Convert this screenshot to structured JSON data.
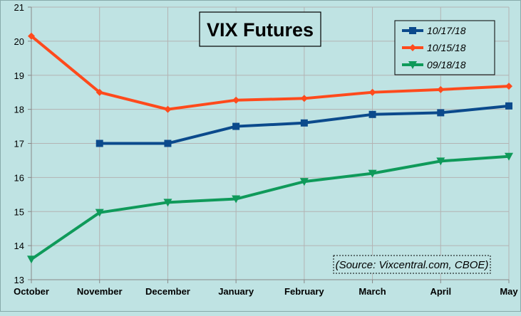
{
  "chart_data": {
    "type": "line",
    "title": "VIX Futures",
    "source_note": "(Source: Vixcentral.com, CBOE)",
    "categories": [
      "October",
      "November",
      "December",
      "January",
      "February",
      "March",
      "April",
      "May"
    ],
    "ylim": [
      13,
      21
    ],
    "yticks": [
      "13",
      "14",
      "15",
      "16",
      "17",
      "18",
      "19",
      "20",
      "21"
    ],
    "grid": true,
    "legend_position": "top-right",
    "series": [
      {
        "name": "10/17/18",
        "color": "#0b4a8c",
        "marker": "square",
        "values": [
          null,
          17.0,
          17.0,
          17.5,
          17.6,
          17.85,
          17.9,
          18.1
        ]
      },
      {
        "name": "10/15/18",
        "color": "#ff4a1c",
        "marker": "diamond",
        "values": [
          20.15,
          18.5,
          18.0,
          18.27,
          18.32,
          18.5,
          18.58,
          18.68
        ]
      },
      {
        "name": "09/18/18",
        "color": "#0f9a5a",
        "marker": "triangle-down",
        "values": [
          13.6,
          14.97,
          15.27,
          15.37,
          15.88,
          16.12,
          16.48,
          16.62
        ]
      }
    ]
  }
}
